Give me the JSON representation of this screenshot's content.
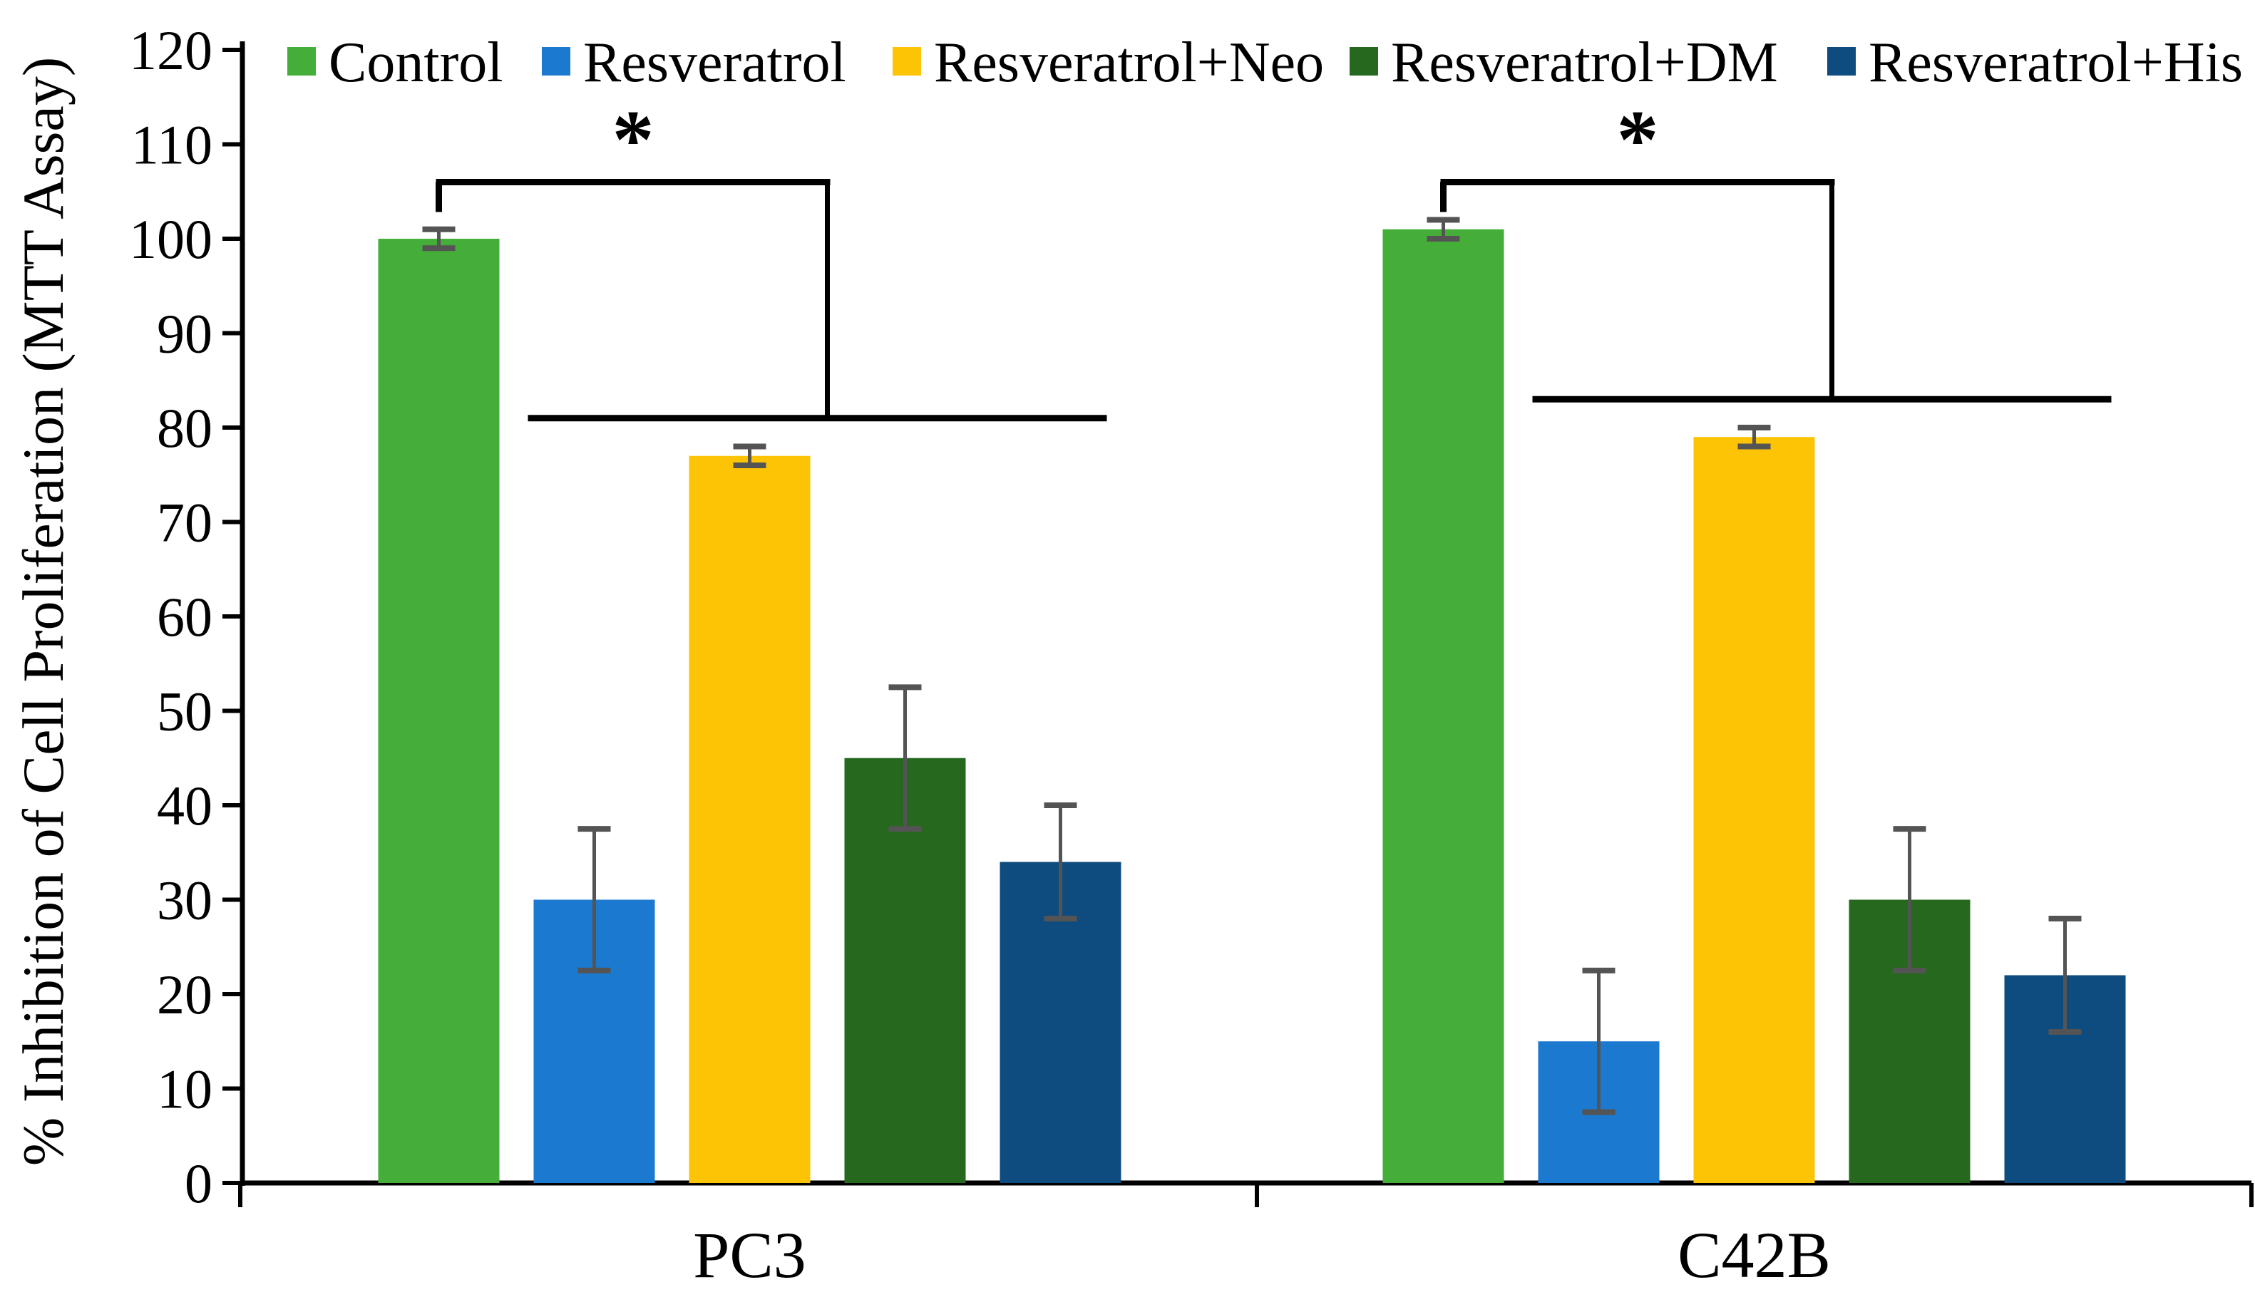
{
  "chart_data": {
    "type": "bar",
    "title": "",
    "xlabel": "",
    "ylabel": "% Inhibition of Cell Proliferation (MTT Assay)",
    "ylim": [
      0,
      120
    ],
    "yticks": [
      0,
      10,
      20,
      30,
      40,
      50,
      60,
      70,
      80,
      90,
      100,
      110,
      120
    ],
    "grid": false,
    "legend_position": "top",
    "categories": [
      "PC3",
      "C42B"
    ],
    "series": [
      {
        "name": "Control",
        "color": "#45AE39",
        "values": [
          100,
          101
        ],
        "errors": [
          1,
          1
        ]
      },
      {
        "name": "Resveratrol",
        "color": "#1B79D0",
        "values": [
          30,
          15
        ],
        "errors": [
          7.5,
          7.5
        ]
      },
      {
        "name": "Resveratrol+Neo",
        "color": "#FDC305",
        "values": [
          77,
          79
        ],
        "errors": [
          1,
          1
        ]
      },
      {
        "name": "Resveratrol+DM",
        "color": "#26691E",
        "values": [
          45,
          30
        ],
        "errors": [
          7.5,
          7.5
        ]
      },
      {
        "name": "Resveratrol+His",
        "color": "#0E4B7E",
        "values": [
          34,
          22
        ],
        "errors": [
          6,
          6
        ]
      }
    ],
    "error_bar_color": "#545454",
    "axis_color": "#000000",
    "significance_brackets": [
      {
        "category": "PC3",
        "label": "*",
        "compare_from": "Control",
        "compare_to": "all resveratrol treatments",
        "top_value": 106,
        "lower_line_value": 81
      },
      {
        "category": "C42B",
        "label": "*",
        "compare_from": "Control",
        "compare_to": "all resveratrol treatments",
        "top_value": 106,
        "lower_line_value": 83
      }
    ]
  }
}
